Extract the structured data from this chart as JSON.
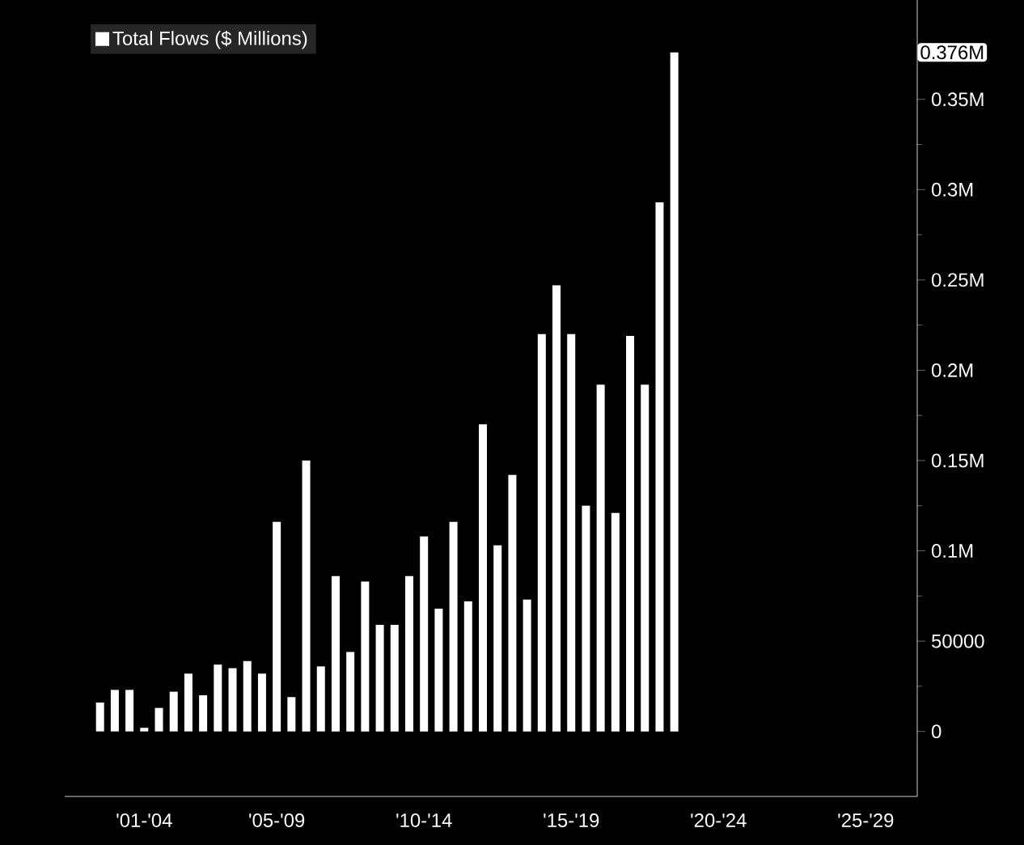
{
  "chart_data": {
    "type": "bar",
    "categories": [
      null,
      null,
      null,
      "'01-'04",
      null,
      null,
      null,
      null,
      null,
      null,
      null,
      null,
      "'05-'09",
      null,
      null,
      null,
      null,
      null,
      null,
      null,
      null,
      null,
      "'10-'14",
      null,
      null,
      null,
      null,
      null,
      null,
      null,
      null,
      null,
      "'15-'19",
      null,
      null,
      null,
      null,
      null,
      null,
      null,
      null,
      null,
      "'20-'24",
      null,
      null,
      null,
      null,
      null,
      null,
      null,
      null,
      null,
      "'25-'29",
      null,
      null,
      null,
      null
    ],
    "series": [
      {
        "name": "Total Flows ($ Millions)",
        "color": "#ffffff",
        "values": [
          16000,
          23000,
          23000,
          2000,
          13000,
          22000,
          32000,
          20000,
          37000,
          35000,
          39000,
          32000,
          116000,
          19000,
          150000,
          36000,
          86000,
          44000,
          83000,
          59000,
          59000,
          86000,
          108000,
          68000,
          116000,
          72000,
          170000,
          103000,
          142000,
          73000,
          220000,
          247000,
          220000,
          125000,
          192000,
          121000,
          219000,
          192000,
          293000,
          376000,
          null,
          null,
          null,
          null,
          null,
          null,
          null,
          null,
          null,
          null,
          null,
          null,
          null,
          null,
          null,
          null,
          null
        ]
      }
    ],
    "ylim": [
      -36000,
      405000
    ],
    "yticks": [
      0,
      {
        "value": 25000,
        "label": null
      },
      50000,
      {
        "value": 75000,
        "label": null
      },
      {
        "value": 100000,
        "label": "0.1M"
      },
      {
        "value": 125000,
        "label": null
      },
      {
        "value": 150000,
        "label": "0.15M"
      },
      {
        "value": 175000,
        "label": null
      },
      {
        "value": 200000,
        "label": "0.2M"
      },
      {
        "value": 225000,
        "label": null
      },
      {
        "value": 250000,
        "label": "0.25M"
      },
      {
        "value": 275000,
        "label": null
      },
      {
        "value": 300000,
        "label": "0.3M"
      },
      {
        "value": 325000,
        "label": null
      },
      {
        "value": 350000,
        "label": "0.35M"
      }
    ],
    "annotations": [
      "0.376M"
    ],
    "legend": "top left"
  }
}
